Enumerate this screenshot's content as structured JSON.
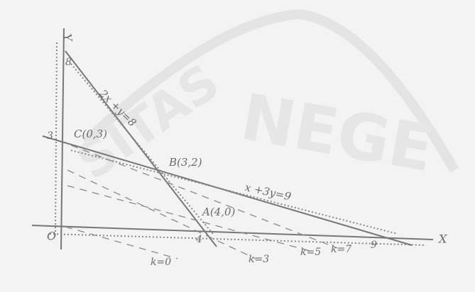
{
  "axes": {
    "x_label": "X",
    "y_label": "Y",
    "origin": "O",
    "x_ticks": [
      "4",
      "9"
    ],
    "y_ticks": [
      "3",
      "8"
    ]
  },
  "points": [
    {
      "label": "C(0,3)"
    },
    {
      "label": "B(3,2)"
    },
    {
      "label": "A(4,0)"
    }
  ],
  "constraints": [
    {
      "label": "2x +y=8"
    },
    {
      "label": "x +3y=9"
    }
  ],
  "level_lines": [
    {
      "label": "k=0"
    },
    {
      "label": "k=3"
    },
    {
      "label": "k=5"
    },
    {
      "label": "k=7"
    }
  ],
  "watermark": [
    "SITAS",
    "NEGE"
  ]
}
